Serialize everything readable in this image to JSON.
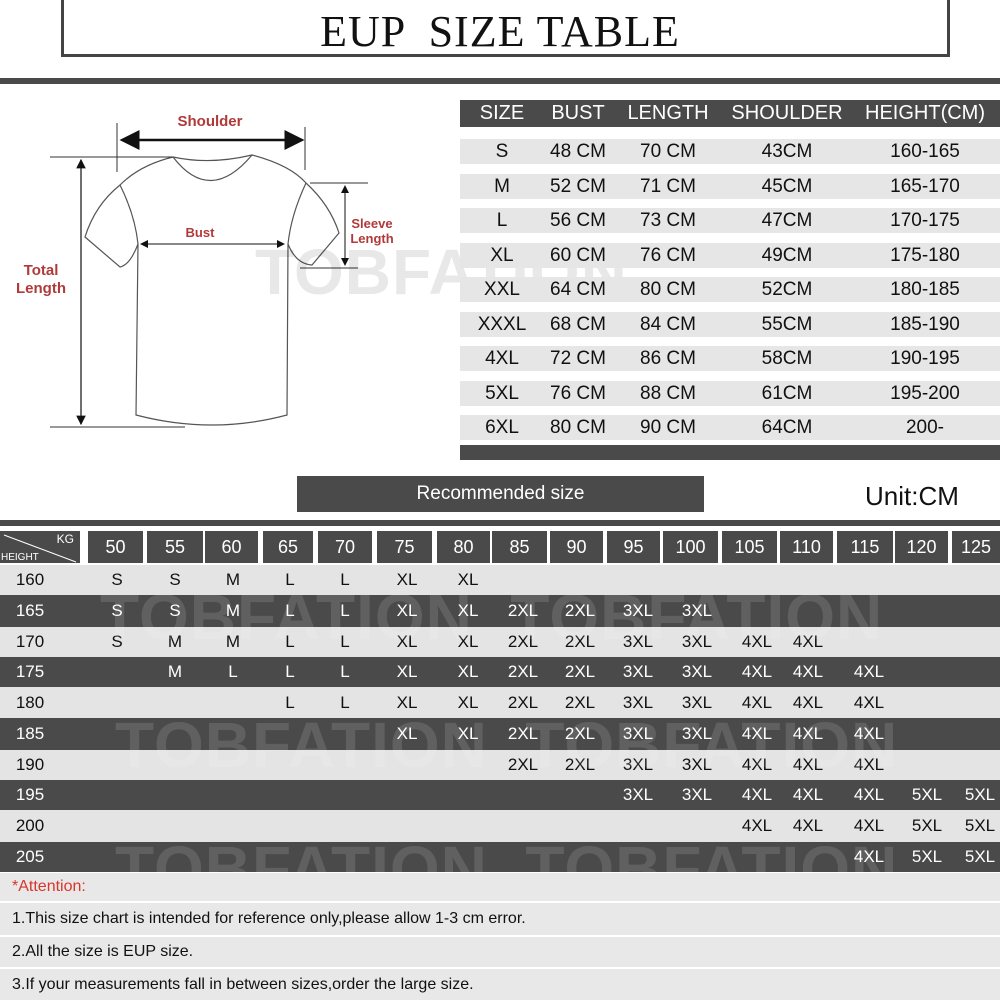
{
  "header": {
    "title": "EUP  SIZE TABLE"
  },
  "diagram": {
    "shoulder": "Shoulder",
    "bust": "Bust",
    "sleeve_length": [
      "Sleeve",
      "Length"
    ],
    "total_length": [
      "Total",
      "Length"
    ],
    "label_color": "#b03a3a"
  },
  "watermark": "TOBFATION",
  "size_table": {
    "columns": [
      "SIZE",
      "BUST",
      "LENGTH",
      "SHOULDER",
      "HEIGHT(CM)"
    ],
    "rows": [
      [
        "S",
        "48 CM",
        "70 CM",
        "43CM",
        "160-165"
      ],
      [
        "M",
        "52 CM",
        "71 CM",
        "45CM",
        "165-170"
      ],
      [
        "L",
        "56 CM",
        "73 CM",
        "47CM",
        "170-175"
      ],
      [
        "XL",
        "60 CM",
        "76 CM",
        "49CM",
        "175-180"
      ],
      [
        "XXL",
        "64 CM",
        "80 CM",
        "52CM",
        "180-185"
      ],
      [
        "XXXL",
        "68 CM",
        "84 CM",
        "55CM",
        "185-190"
      ],
      [
        "4XL",
        "72 CM",
        "86 CM",
        "58CM",
        "190-195"
      ],
      [
        "5XL",
        "76 CM",
        "88 CM",
        "61CM",
        "195-200"
      ],
      [
        "6XL",
        "80 CM",
        "90 CM",
        "64CM",
        "200-"
      ]
    ]
  },
  "recommended": {
    "label": "Recommended size",
    "unit": "Unit:CM"
  },
  "recommend_table": {
    "corner_top": "KG",
    "corner_bottom": "HEIGHT",
    "weights": [
      "50",
      "55",
      "60",
      "65",
      "70",
      "75",
      "80",
      "85",
      "90",
      "95",
      "100",
      "105",
      "110",
      "115",
      "120",
      "125"
    ],
    "rows": [
      {
        "height": "160",
        "sizes": [
          "S",
          "S",
          "M",
          "L",
          "L",
          "XL",
          "XL",
          "",
          "",
          "",
          "",
          "",
          "",
          "",
          "",
          ""
        ]
      },
      {
        "height": "165",
        "sizes": [
          "S",
          "S",
          "M",
          "L",
          "L",
          "XL",
          "XL",
          "2XL",
          "2XL",
          "3XL",
          "3XL",
          "",
          "",
          "",
          "",
          ""
        ]
      },
      {
        "height": "170",
        "sizes": [
          "S",
          "M",
          "M",
          "L",
          "L",
          "XL",
          "XL",
          "2XL",
          "2XL",
          "3XL",
          "3XL",
          "4XL",
          "4XL",
          "",
          "",
          ""
        ]
      },
      {
        "height": "175",
        "sizes": [
          "",
          "M",
          "L",
          "L",
          "L",
          "XL",
          "XL",
          "2XL",
          "2XL",
          "3XL",
          "3XL",
          "4XL",
          "4XL",
          "4XL",
          "",
          ""
        ]
      },
      {
        "height": "180",
        "sizes": [
          "",
          "",
          "",
          "L",
          "L",
          "XL",
          "XL",
          "2XL",
          "2XL",
          "3XL",
          "3XL",
          "4XL",
          "4XL",
          "4XL",
          "",
          ""
        ]
      },
      {
        "height": "185",
        "sizes": [
          "",
          "",
          "",
          "",
          "",
          "XL",
          "XL",
          "2XL",
          "2XL",
          "3XL",
          "3XL",
          "4XL",
          "4XL",
          "4XL",
          "",
          ""
        ]
      },
      {
        "height": "190",
        "sizes": [
          "",
          "",
          "",
          "",
          "",
          "",
          "",
          "2XL",
          "2XL",
          "3XL",
          "3XL",
          "4XL",
          "4XL",
          "4XL",
          "",
          ""
        ]
      },
      {
        "height": "195",
        "sizes": [
          "",
          "",
          "",
          "",
          "",
          "",
          "",
          "",
          "",
          "3XL",
          "3XL",
          "4XL",
          "4XL",
          "4XL",
          "5XL",
          "5XL"
        ]
      },
      {
        "height": "200",
        "sizes": [
          "",
          "",
          "",
          "",
          "",
          "",
          "",
          "",
          "",
          "",
          "",
          "4XL",
          "4XL",
          "4XL",
          "5XL",
          "5XL"
        ]
      },
      {
        "height": "205",
        "sizes": [
          "",
          "",
          "",
          "",
          "",
          "",
          "",
          "",
          "",
          "",
          "",
          "",
          "",
          "4XL",
          "5XL",
          "5XL"
        ]
      }
    ]
  },
  "notes": {
    "attention": "*Attention:",
    "attention_color": "#d9352b",
    "items": [
      "1.This size chart is intended for reference only,please allow 1-3 cm error.",
      "2.All the size is EUP size.",
      "3.If your measurements fall in between sizes,order the large size."
    ]
  }
}
